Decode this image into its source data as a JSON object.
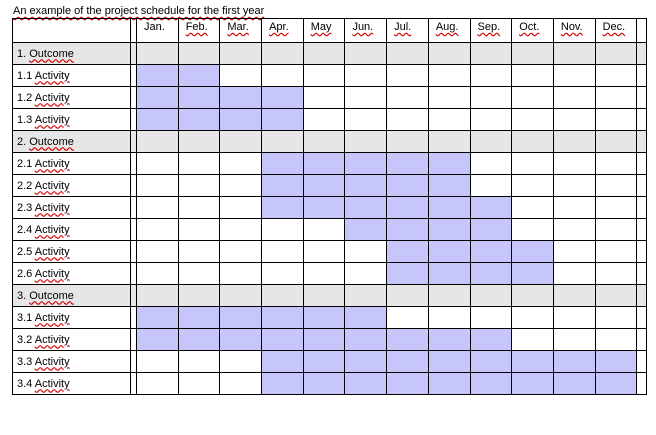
{
  "title": "An example of the project schedule for the first year",
  "months": [
    "Jan.",
    "Feb.",
    "Mar.",
    "Apr.",
    "May",
    "Jun.",
    "Jul.",
    "Aug.",
    "Sep.",
    "Oct.",
    "Nov.",
    "Dec."
  ],
  "rows": [
    {
      "num": "1.",
      "label": "Outcome",
      "kind": "outcome",
      "active": [
        0,
        0,
        0,
        0,
        0,
        0,
        0,
        0,
        0,
        0,
        0,
        0
      ]
    },
    {
      "num": "1.1",
      "label": "Activity",
      "kind": "activity",
      "active": [
        1,
        1,
        0,
        0,
        0,
        0,
        0,
        0,
        0,
        0,
        0,
        0
      ]
    },
    {
      "num": "1.2",
      "label": "Activity",
      "kind": "activity",
      "active": [
        1,
        1,
        1,
        1,
        0,
        0,
        0,
        0,
        0,
        0,
        0,
        0
      ]
    },
    {
      "num": "1.3",
      "label": "Activity",
      "kind": "activity",
      "active": [
        1,
        1,
        1,
        1,
        0,
        0,
        0,
        0,
        0,
        0,
        0,
        0
      ]
    },
    {
      "num": "2.",
      "label": "Outcome",
      "kind": "outcome",
      "active": [
        0,
        0,
        0,
        0,
        0,
        0,
        0,
        0,
        0,
        0,
        0,
        0
      ]
    },
    {
      "num": "2.1",
      "label": "Activity",
      "kind": "activity",
      "active": [
        0,
        0,
        0,
        1,
        1,
        1,
        1,
        1,
        0,
        0,
        0,
        0
      ]
    },
    {
      "num": "2.2",
      "label": "Activity",
      "kind": "activity",
      "active": [
        0,
        0,
        0,
        1,
        1,
        1,
        1,
        1,
        0,
        0,
        0,
        0
      ]
    },
    {
      "num": "2.3",
      "label": "Activity",
      "kind": "activity",
      "active": [
        0,
        0,
        0,
        1,
        1,
        1,
        1,
        1,
        1,
        0,
        0,
        0
      ]
    },
    {
      "num": "2.4",
      "label": "Activity",
      "kind": "activity",
      "active": [
        0,
        0,
        0,
        0,
        0,
        1,
        1,
        1,
        1,
        0,
        0,
        0
      ]
    },
    {
      "num": "2.5",
      "label": "Activity",
      "kind": "activity",
      "active": [
        0,
        0,
        0,
        0,
        0,
        0,
        1,
        1,
        1,
        1,
        0,
        0
      ]
    },
    {
      "num": "2.6",
      "label": "Activity",
      "kind": "activity",
      "active": [
        0,
        0,
        0,
        0,
        0,
        0,
        1,
        1,
        1,
        1,
        0,
        0
      ]
    },
    {
      "num": "3.",
      "label": "Outcome",
      "kind": "outcome",
      "active": [
        0,
        0,
        0,
        0,
        0,
        0,
        0,
        0,
        0,
        0,
        0,
        0
      ]
    },
    {
      "num": "3.1",
      "label": "Activity",
      "kind": "activity",
      "active": [
        1,
        1,
        1,
        1,
        1,
        1,
        0,
        0,
        0,
        0,
        0,
        0
      ]
    },
    {
      "num": "3.2",
      "label": "Activity",
      "kind": "activity",
      "active": [
        1,
        1,
        1,
        1,
        1,
        1,
        1,
        1,
        1,
        0,
        0,
        0
      ]
    },
    {
      "num": "3.3",
      "label": "Activity",
      "kind": "activity",
      "active": [
        0,
        0,
        0,
        1,
        1,
        1,
        1,
        1,
        1,
        1,
        1,
        1
      ]
    },
    {
      "num": "3.4",
      "label": "Activity",
      "kind": "activity",
      "active": [
        0,
        0,
        0,
        1,
        1,
        1,
        1,
        1,
        1,
        1,
        1,
        1
      ]
    }
  ],
  "colors": {
    "activity_fill": "#c6c6fb",
    "outcome_row": "#e6e6e6",
    "grid": "#000000",
    "spellcheck_underline": "#d00000"
  }
}
